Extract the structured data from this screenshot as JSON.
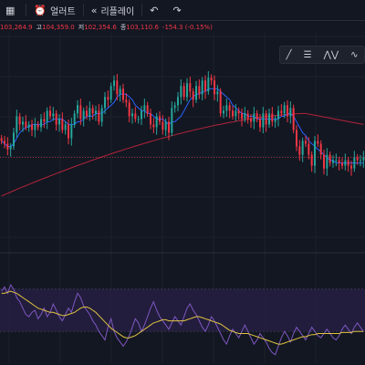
{
  "toolbar": {
    "layout_icon": "grid-icon",
    "alert_icon": "alarm-clock-icon",
    "alert_label": "얼러트",
    "replay_icon": "rewind-icon",
    "replay_label": "리플레이",
    "undo_icon": "undo-icon",
    "redo_icon": "redo-icon"
  },
  "ohlc": {
    "open_prefix": "",
    "open": "103,264.9",
    "high_label": "고",
    "high": "104,359.0",
    "low_label": "저",
    "low": "102,354.6",
    "close_label": "종",
    "close": "103,110.6",
    "change": "-154.3 (-0.15%)"
  },
  "drawing_tools": [
    "trend-line-icon",
    "fib-retracement-icon",
    "pattern-icon",
    "wave-icon"
  ],
  "colors": {
    "background": "#131722",
    "up": "#26a69a",
    "down": "#f23645",
    "ma_short": "#2962ff",
    "ma_long": "#b2233a",
    "rsi": "#7e57c2",
    "rsi_ma": "#e0c341",
    "rsi_band": "#2a2147"
  },
  "chart_data": [
    {
      "type": "candlestick",
      "title": "",
      "xlabel": "",
      "ylabel": "",
      "ylim": [
        100800,
        108500
      ],
      "grid": true,
      "close": [
        104700,
        104600,
        104400,
        104500,
        105000,
        105600,
        105300,
        105400,
        105200,
        105300,
        105100,
        105300,
        105200,
        105500,
        105400,
        105800,
        105600,
        105700,
        105300,
        105500,
        105100,
        105300,
        104800,
        105300,
        105700,
        106000,
        105500,
        105800,
        105600,
        105900,
        105700,
        105800,
        105400,
        105900,
        106300,
        106200,
        106700,
        106900,
        106400,
        106600,
        106200,
        106100,
        105600,
        105700,
        105500,
        105500,
        105800,
        106000,
        105700,
        105300,
        105200,
        105600,
        105400,
        105100,
        105400,
        105000,
        105900,
        106000,
        106300,
        106700,
        106300,
        106800,
        106500,
        106200,
        106700,
        106400,
        106900,
        106500,
        107000,
        106900,
        106400,
        106500,
        105700,
        105800,
        106000,
        105800,
        105600,
        105800,
        105700,
        105500,
        105700,
        105500,
        105400,
        105700,
        105500,
        105200,
        105700,
        105300,
        105700,
        105400,
        105500,
        105800,
        105700,
        106000,
        105600,
        105900,
        105100,
        104500,
        104200,
        104700,
        104600,
        104200,
        103800,
        104700,
        104600,
        104200,
        103700,
        104200,
        103900,
        104000,
        104000,
        103900,
        103800,
        104000,
        103800,
        103700,
        104100,
        104000,
        104000,
        104100
      ],
      "ma_short": [
        104700,
        104600,
        104500,
        104500,
        104600,
        104800,
        105000,
        105100,
        105200,
        105200,
        105300,
        105300,
        105300,
        105300,
        105300,
        105400,
        105400,
        105500,
        105500,
        105500,
        105500,
        105400,
        105300,
        105300,
        105300,
        105400,
        105400,
        105500,
        105600,
        105600,
        105600,
        105700,
        105700,
        105700,
        105800,
        105900,
        106000,
        106100,
        106300,
        106400,
        106400,
        106400,
        106300,
        106200,
        106000,
        105900,
        105800,
        105800,
        105700,
        105700,
        105600,
        105500,
        105500,
        105500,
        105400,
        105300,
        105400,
        105400,
        105500,
        105600,
        105800,
        106000,
        106200,
        106300,
        106400,
        106400,
        106500,
        106500,
        106600,
        106600,
        106600,
        106600,
        106500,
        106400,
        106300,
        106200,
        106000,
        105900,
        105800,
        105700,
        105700,
        105600,
        105600,
        105600,
        105500,
        105500,
        105500,
        105500,
        105500,
        105500,
        105500,
        105500,
        105600,
        105600,
        105700,
        105700,
        105600,
        105400,
        105200,
        105000,
        104900,
        104700,
        104600,
        104500,
        104400,
        104300,
        104200,
        104100,
        104000,
        104000,
        103900,
        103900,
        103900,
        103900,
        103900,
        103900,
        103900,
        103900,
        103900,
        103900
      ],
      "ma_long_start": 102700,
      "ma_long_peak_index": 100,
      "ma_long_peak": 105700,
      "ma_long_end": 105300
    },
    {
      "type": "line",
      "title": "",
      "ylim": [
        0,
        100
      ],
      "band": [
        30,
        70
      ],
      "series": [
        {
          "color": "#7e57c2",
          "values": [
            68,
            72,
            66,
            74,
            70,
            62,
            58,
            52,
            46,
            44,
            48,
            50,
            42,
            46,
            52,
            44,
            48,
            56,
            50,
            44,
            40,
            46,
            52,
            48,
            58,
            66,
            62,
            54,
            50,
            46,
            40,
            36,
            30,
            26,
            22,
            34,
            42,
            30,
            24,
            20,
            16,
            20,
            26,
            34,
            42,
            38,
            30,
            36,
            44,
            52,
            58,
            50,
            44,
            40,
            36,
            32,
            38,
            44,
            40,
            36,
            44,
            52,
            56,
            50,
            46,
            40,
            34,
            30,
            36,
            44,
            40,
            34,
            28,
            22,
            18,
            26,
            32,
            28,
            24,
            30,
            36,
            30,
            24,
            18,
            22,
            28,
            24,
            20,
            14,
            10,
            8,
            16,
            24,
            30,
            26,
            20,
            28,
            34,
            30,
            26,
            22,
            28,
            34,
            30,
            26,
            24,
            28,
            32,
            28,
            24,
            22,
            26,
            32,
            36,
            32,
            28,
            34,
            38,
            34,
            30
          ]
        },
        {
          "color": "#e0c341",
          "values": [
            66,
            66,
            67,
            68,
            67,
            66,
            64,
            62,
            60,
            58,
            56,
            54,
            52,
            51,
            50,
            49,
            48,
            48,
            47,
            46,
            45,
            45,
            46,
            47,
            48,
            50,
            52,
            53,
            53,
            52,
            50,
            48,
            45,
            42,
            39,
            36,
            33,
            31,
            29,
            27,
            25,
            24,
            24,
            25,
            26,
            28,
            30,
            32,
            34,
            36,
            38,
            39,
            40,
            41,
            41,
            40,
            40,
            40,
            40,
            40,
            40,
            41,
            42,
            43,
            44,
            44,
            43,
            42,
            41,
            40,
            39,
            38,
            37,
            35,
            33,
            31,
            30,
            29,
            28,
            28,
            28,
            28,
            27,
            26,
            25,
            24,
            23,
            22,
            21,
            20,
            19,
            18,
            18,
            19,
            20,
            21,
            22,
            23,
            24,
            25,
            25,
            26,
            27,
            27,
            28,
            28,
            28,
            28,
            28,
            28,
            28,
            28,
            29,
            29,
            29,
            29,
            30,
            30,
            30,
            30
          ]
        }
      ]
    }
  ]
}
